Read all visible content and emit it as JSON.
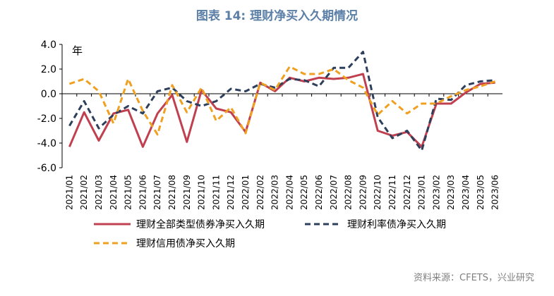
{
  "chart_data": {
    "type": "line",
    "title": "图表 14: 理财净买入久期情况",
    "unit_label": "年",
    "ylim": [
      -6.0,
      4.0
    ],
    "yticks": [
      "4.0",
      "2.0",
      "0.0",
      "-2.0",
      "-4.0",
      "-6.0"
    ],
    "grid": false,
    "legend_position": "bottom",
    "categories": [
      "2021/01",
      "2021/02",
      "2021/03",
      "2021/04",
      "2021/05",
      "2021/06",
      "2021/07",
      "2021/08",
      "2021/09",
      "2021/10",
      "2021/11",
      "2021/12",
      "2022/01",
      "2022/02",
      "2022/03",
      "2022/04",
      "2022/05",
      "2022/06",
      "2022/07",
      "2022/08",
      "2022/09",
      "2022/10",
      "2022/11",
      "2022/12",
      "2023/01",
      "2023/02",
      "2023/03",
      "2023/04",
      "2023/05",
      "2023/06"
    ],
    "series": [
      {
        "name": "理财全部类型债券净买入久期",
        "color": "#c0404f",
        "style": "solid",
        "values": [
          -4.3,
          -1.5,
          -3.8,
          -1.6,
          -1.3,
          -4.3,
          -1.6,
          -0.1,
          -3.9,
          0.3,
          -1.2,
          -1.5,
          -3.1,
          0.9,
          0.2,
          1.3,
          1.0,
          1.3,
          1.2,
          1.3,
          1.6,
          -3.0,
          -3.4,
          -3.1,
          -4.3,
          -0.8,
          -0.8,
          0.1,
          0.8,
          0.9
        ]
      },
      {
        "name": "理财利率债净买入久期",
        "color": "#2e3f5c",
        "style": "dashed",
        "values": [
          -2.6,
          -0.6,
          -2.8,
          -1.7,
          -1.0,
          -1.6,
          0.2,
          0.5,
          -0.6,
          -1.0,
          -0.6,
          0.4,
          0.2,
          0.8,
          0.5,
          1.2,
          1.1,
          0.6,
          2.1,
          2.1,
          3.4,
          -1.9,
          -3.6,
          -3.0,
          -4.6,
          -0.4,
          -0.5,
          0.7,
          1.0,
          1.1
        ]
      },
      {
        "name": "理财信用债净买入久期",
        "color": "#f0a020",
        "style": "dashed",
        "values": [
          0.8,
          1.2,
          0.2,
          -2.4,
          1.2,
          -1.4,
          -3.3,
          0.7,
          -1.5,
          0.5,
          -2.2,
          -1.1,
          -3.2,
          0.9,
          0.3,
          2.2,
          1.6,
          1.6,
          2.0,
          1.1,
          0.5,
          -1.7,
          -0.6,
          -1.6,
          -0.8,
          -0.8,
          -0.2,
          0.3,
          0.6,
          1.0
        ]
      }
    ]
  },
  "source_note": "资料来源：CFETS，兴业研究"
}
